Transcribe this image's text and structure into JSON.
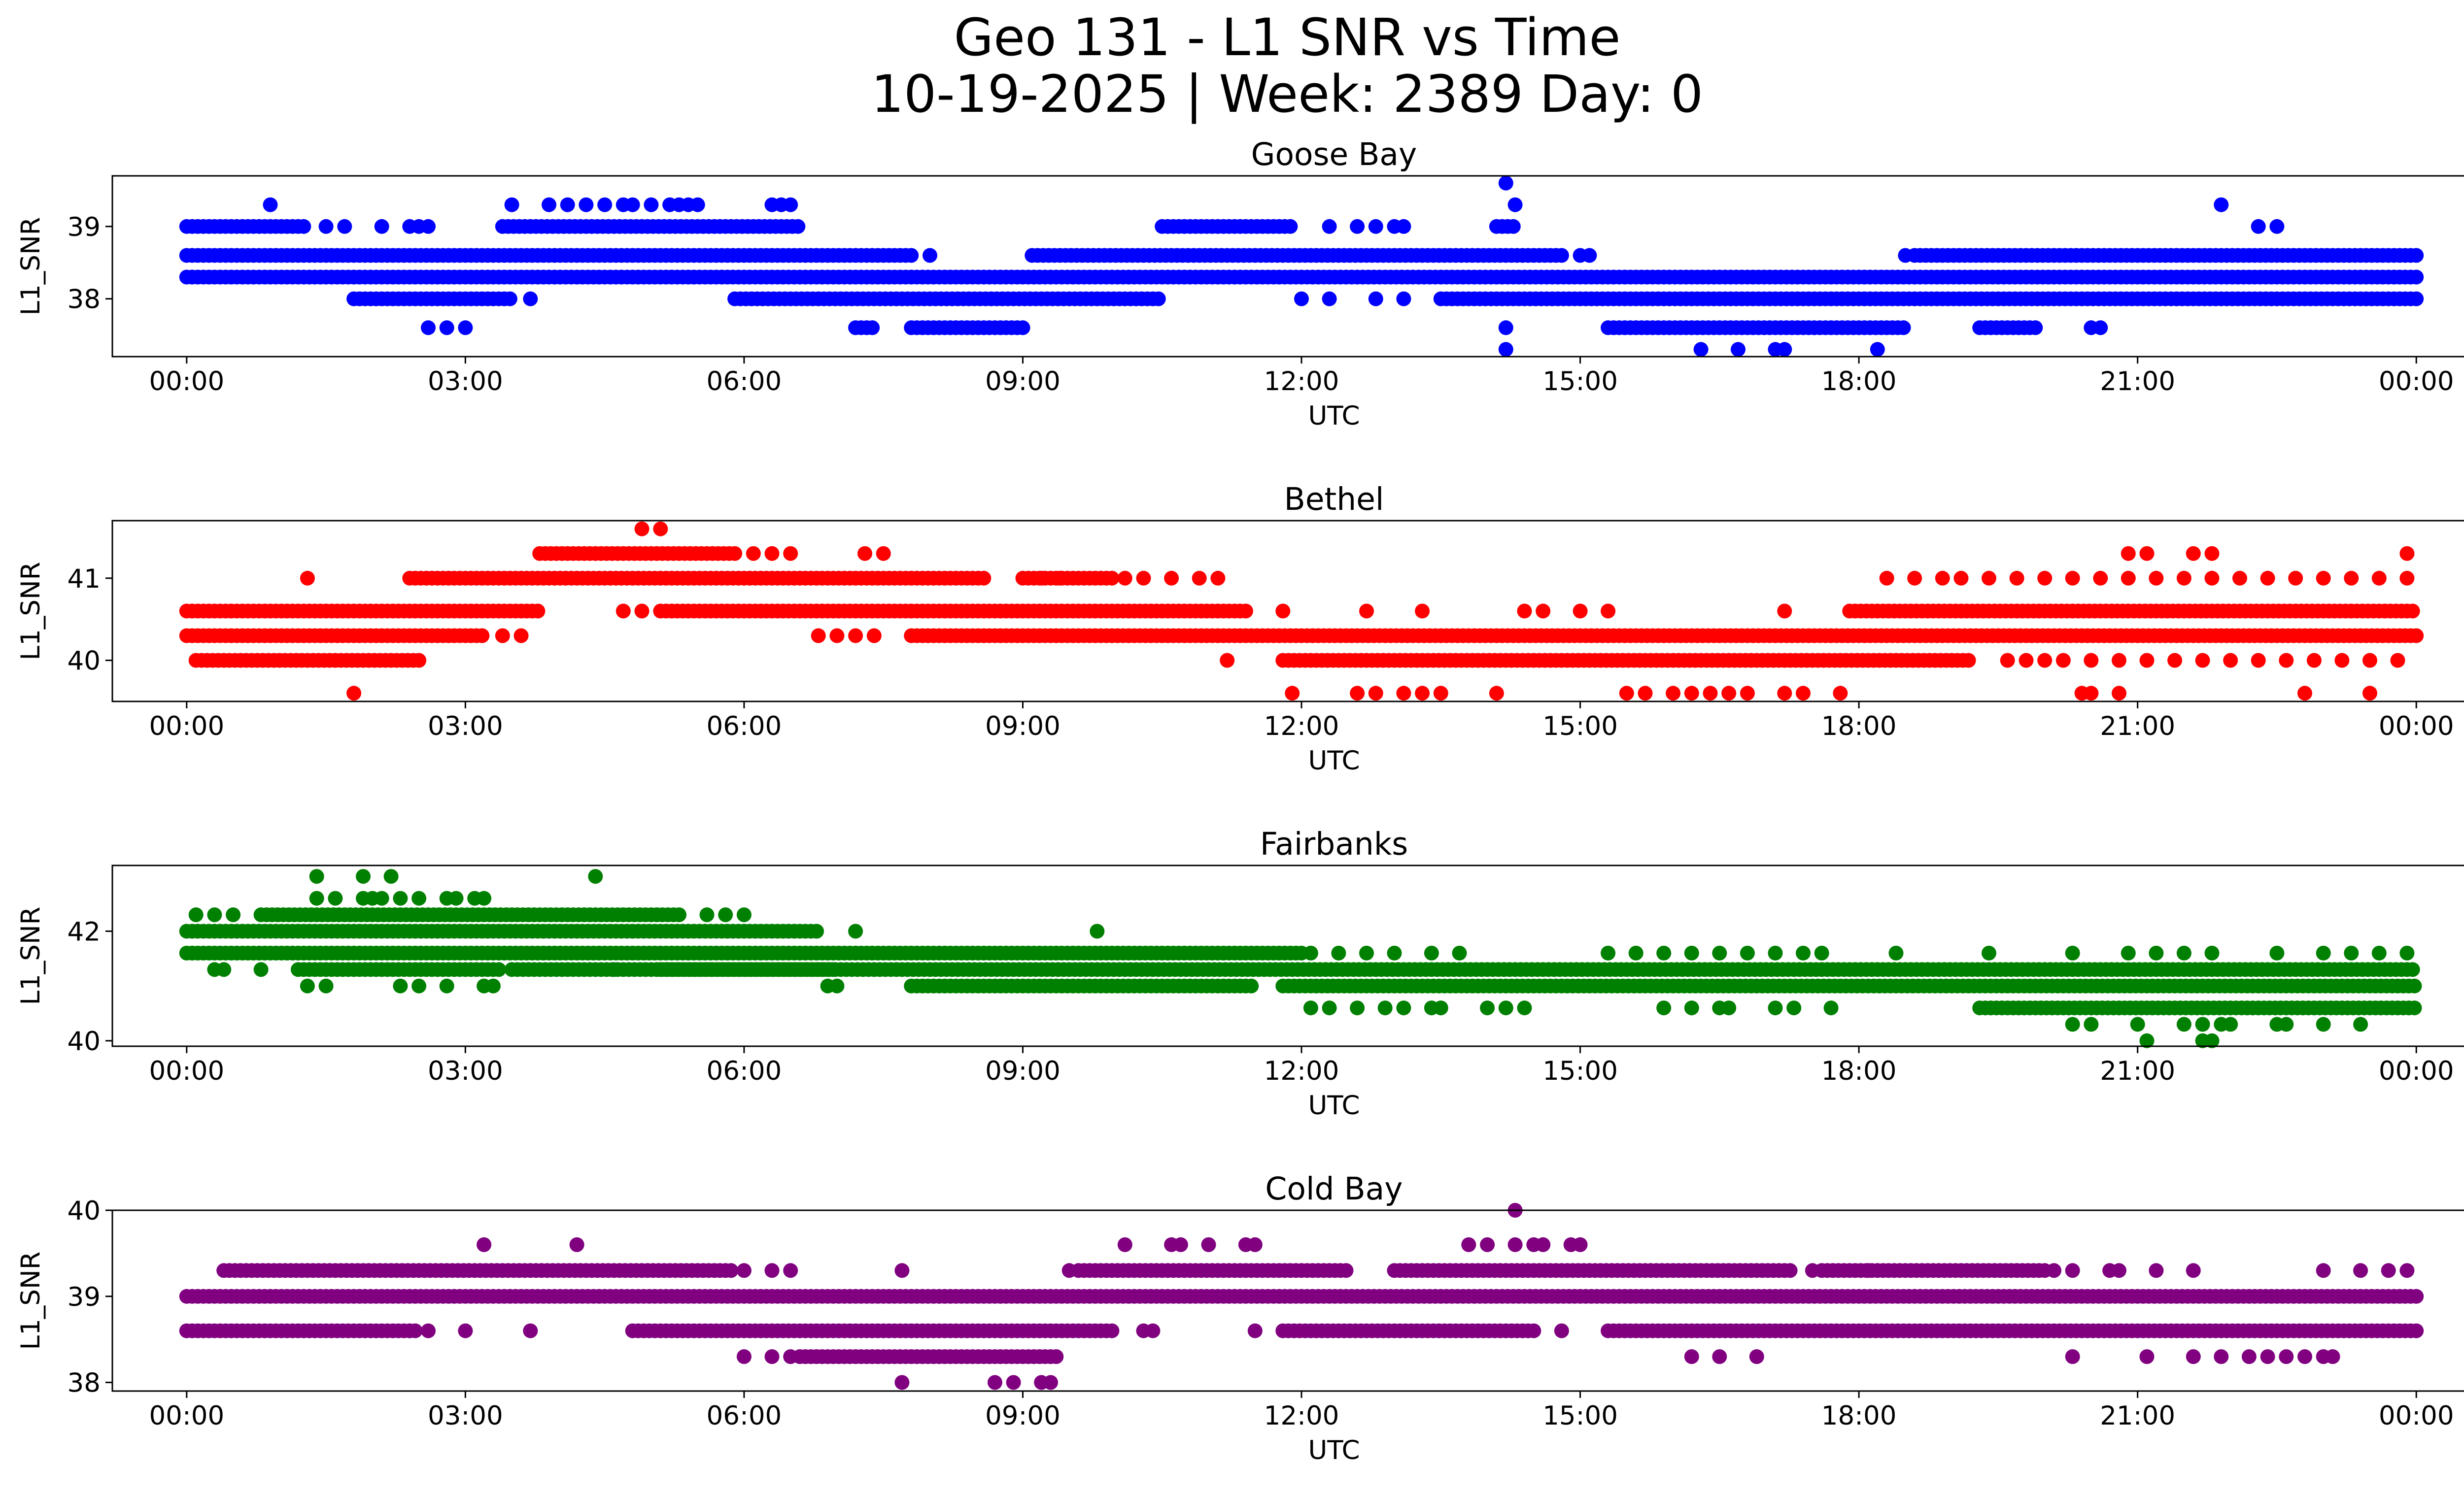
{
  "figure": {
    "title_line1": "Geo 131 - L1 SNR vs Time",
    "title_line2": "10-19-2025 | Week: 2389 Day: 0"
  },
  "chart_data": [
    {
      "type": "scatter",
      "title": "Goose Bay",
      "xlabel": "UTC",
      "ylabel": "L1_SNR",
      "color": "#0000ff",
      "xlim": [
        -0.8,
        25.5
      ],
      "ylim": [
        37.2,
        39.7
      ],
      "yticks": [
        38,
        39
      ],
      "xticks": [
        0,
        3,
        6,
        9,
        12,
        15,
        18,
        21,
        24
      ],
      "xticklabels": [
        "00:00",
        "03:00",
        "06:00",
        "09:00",
        "12:00",
        "15:00",
        "18:00",
        "21:00",
        "00:00"
      ],
      "levels": [
        37.3,
        37.6,
        38.0,
        38.3,
        38.6,
        39.0,
        39.3,
        39.6
      ],
      "bands": [
        {
          "y": 38.3,
          "segments": [
            [
              0,
              24
            ]
          ]
        },
        {
          "y": 38.6,
          "segments": [
            [
              0,
              7.8
            ],
            [
              9.1,
              14.8
            ],
            [
              18.6,
              24
            ]
          ]
        },
        {
          "y": 38.0,
          "segments": [
            [
              1.8,
              3.5
            ],
            [
              5.9,
              10.5
            ],
            [
              13.5,
              24
            ]
          ]
        },
        {
          "y": 39.0,
          "segments": [
            [
              0,
              1.3
            ],
            [
              3.4,
              6.6
            ],
            [
              10.5,
              11.9
            ],
            [
              14.1,
              14.3
            ]
          ]
        },
        {
          "y": 37.6,
          "segments": [
            [
              7.2,
              7.4
            ],
            [
              7.8,
              9.0
            ],
            [
              15.3,
              18.5
            ],
            [
              19.3,
              19.9
            ]
          ]
        }
      ],
      "scatter": [
        {
          "y": 37.6,
          "x": [
            2.6,
            2.8,
            3.0,
            14.2,
            20.5,
            20.6
          ]
        },
        {
          "y": 37.3,
          "x": [
            14.2,
            16.3,
            16.7,
            17.1,
            17.2,
            18.2
          ]
        },
        {
          "y": 38.0,
          "x": [
            3.7,
            12.0,
            12.3,
            12.8,
            13.1
          ]
        },
        {
          "y": 38.6,
          "x": [
            8.0,
            15.0,
            15.1,
            18.5
          ]
        },
        {
          "y": 39.0,
          "x": [
            1.5,
            1.7,
            2.1,
            2.4,
            2.5,
            2.6,
            12.3,
            12.6,
            12.8,
            13.0,
            13.1,
            22.3,
            22.5
          ]
        },
        {
          "y": 39.3,
          "x": [
            0.9,
            3.5,
            3.9,
            4.1,
            4.3,
            4.5,
            4.7,
            4.8,
            5.0,
            5.2,
            5.3,
            5.4,
            5.5,
            6.3,
            6.4,
            6.5,
            14.3,
            21.9
          ]
        },
        {
          "y": 39.6,
          "x": [
            14.2
          ]
        }
      ]
    },
    {
      "type": "scatter",
      "title": "Bethel",
      "xlabel": "UTC",
      "ylabel": "L1_SNR",
      "color": "#ff0000",
      "xlim": [
        -0.8,
        25.5
      ],
      "ylim": [
        39.5,
        41.7
      ],
      "yticks": [
        40,
        41
      ],
      "xticks": [
        0,
        3,
        6,
        9,
        12,
        15,
        18,
        21,
        24
      ],
      "xticklabels": [
        "00:00",
        "03:00",
        "06:00",
        "09:00",
        "12:00",
        "15:00",
        "18:00",
        "21:00",
        "00:00"
      ],
      "levels": [
        39.6,
        40.0,
        40.3,
        40.6,
        41.0,
        41.3,
        41.6
      ],
      "bands": [
        {
          "y": 40.3,
          "segments": [
            [
              0,
              3.2
            ],
            [
              7.8,
              24
            ]
          ]
        },
        {
          "y": 40.6,
          "segments": [
            [
              0,
              3.8
            ],
            [
              5.1,
              11.4
            ],
            [
              17.9,
              24
            ]
          ]
        },
        {
          "y": 40.0,
          "segments": [
            [
              0.1,
              2.5
            ],
            [
              11.8,
              19.2
            ]
          ]
        },
        {
          "y": 41.0,
          "segments": [
            [
              2.4,
              8.6
            ],
            [
              9.0,
              10.0
            ]
          ]
        },
        {
          "y": 41.3,
          "segments": [
            [
              3.8,
              5.9
            ]
          ]
        }
      ],
      "scatter": [
        {
          "y": 39.6,
          "x": [
            1.8,
            11.9,
            12.6,
            12.8,
            13.1,
            13.3,
            13.5,
            14.1,
            15.5,
            15.7,
            16.0,
            16.2,
            16.4,
            16.6,
            16.8,
            17.2,
            17.4,
            17.8,
            20.4,
            20.5,
            20.8,
            22.8,
            23.5
          ]
        },
        {
          "y": 40.0,
          "x": [
            11.2,
            19.6,
            19.8,
            20.0,
            20.2,
            20.5,
            20.8,
            21.1,
            21.4,
            21.7,
            22.0,
            22.3,
            22.6,
            22.9,
            23.2,
            23.5,
            23.8
          ]
        },
        {
          "y": 40.3,
          "x": [
            3.4,
            3.6,
            6.8,
            7.0,
            7.2,
            7.4
          ]
        },
        {
          "y": 40.6,
          "x": [
            4.7,
            4.9,
            11.8,
            12.7,
            13.3,
            14.4,
            14.6,
            15.0,
            15.3,
            17.2
          ]
        },
        {
          "y": 41.0,
          "x": [
            1.3,
            9.2,
            9.4,
            10.1,
            10.3,
            10.6,
            10.9,
            11.1,
            18.3,
            18.6,
            18.9,
            19.1,
            19.4,
            19.7,
            20.0,
            20.3,
            20.6,
            20.9,
            21.2,
            21.5,
            21.8,
            22.1,
            22.4,
            22.7,
            23.0,
            23.3,
            23.6,
            23.9
          ]
        },
        {
          "y": 41.3,
          "x": [
            6.1,
            6.3,
            6.5,
            7.3,
            7.5,
            20.9,
            21.1,
            21.6,
            21.8,
            23.9
          ]
        },
        {
          "y": 41.6,
          "x": [
            4.9,
            5.1
          ]
        }
      ]
    },
    {
      "type": "scatter",
      "title": "Fairbanks",
      "xlabel": "UTC",
      "ylabel": "L1_SNR",
      "color": "#008000",
      "xlim": [
        -0.8,
        25.5
      ],
      "ylim": [
        39.9,
        43.2
      ],
      "yticks": [
        40,
        42
      ],
      "xticks": [
        0,
        3,
        6,
        9,
        12,
        15,
        18,
        21,
        24
      ],
      "xticklabels": [
        "00:00",
        "03:00",
        "06:00",
        "09:00",
        "12:00",
        "15:00",
        "18:00",
        "21:00",
        "00:00"
      ],
      "levels": [
        40.0,
        40.3,
        40.6,
        41.0,
        41.3,
        41.6,
        42.0,
        42.3,
        42.6,
        43.0
      ],
      "bands": [
        {
          "y": 41.3,
          "segments": [
            [
              3.5,
              24
            ]
          ]
        },
        {
          "y": 41.6,
          "segments": [
            [
              0,
              12.0
            ]
          ]
        },
        {
          "y": 42.0,
          "segments": [
            [
              0,
              6.8
            ]
          ]
        },
        {
          "y": 41.0,
          "segments": [
            [
              11.8,
              24
            ]
          ]
        },
        {
          "y": 42.3,
          "segments": [
            [
              0.8,
              5.3
            ]
          ]
        },
        {
          "y": 41.3,
          "segments": [
            [
              1.2,
              3.4
            ],
            [
              5.1,
              7.0
            ]
          ]
        },
        {
          "y": 41.0,
          "segments": [
            [
              7.8,
              11.5
            ]
          ]
        },
        {
          "y": 40.6,
          "segments": [
            [
              19.3,
              24
            ]
          ]
        }
      ],
      "scatter": [
        {
          "y": 40.0,
          "x": [
            21.1,
            21.7,
            21.8
          ]
        },
        {
          "y": 40.3,
          "x": [
            20.3,
            20.5,
            21.0,
            21.5,
            21.7,
            21.9,
            22.0,
            22.5,
            22.6,
            23.0,
            23.4
          ]
        },
        {
          "y": 40.6,
          "x": [
            12.1,
            12.3,
            12.6,
            12.9,
            13.1,
            13.4,
            13.5,
            14.0,
            14.2,
            14.4,
            15.9,
            16.2,
            16.5,
            16.6,
            17.1,
            17.3,
            17.7
          ]
        },
        {
          "y": 41.0,
          "x": [
            1.3,
            1.5,
            2.3,
            2.5,
            2.8,
            3.2,
            3.3,
            6.9,
            7.0
          ]
        },
        {
          "y": 41.3,
          "x": [
            0.3,
            0.4,
            0.8,
            4.6
          ]
        },
        {
          "y": 41.6,
          "x": [
            12.1,
            12.4,
            12.7,
            13.0,
            13.4,
            13.7,
            15.3,
            15.6,
            15.9,
            16.2,
            16.5,
            16.8,
            17.1,
            17.4,
            17.6,
            18.4,
            19.4,
            20.3,
            20.9,
            21.2,
            21.5,
            21.8,
            22.5,
            23.0,
            23.3,
            23.6,
            23.9
          ]
        },
        {
          "y": 42.0,
          "x": [
            7.2,
            9.8
          ]
        },
        {
          "y": 42.3,
          "x": [
            0.1,
            0.3,
            0.5,
            5.6,
            5.8,
            6.0
          ]
        },
        {
          "y": 42.6,
          "x": [
            1.4,
            1.6,
            1.9,
            2.0,
            2.1,
            2.3,
            2.5,
            2.8,
            2.9,
            3.1,
            3.2
          ]
        },
        {
          "y": 43.0,
          "x": [
            1.4,
            1.9,
            2.2,
            4.4
          ]
        }
      ]
    },
    {
      "type": "scatter",
      "title": "Cold Bay",
      "xlabel": "UTC",
      "ylabel": "L1_SNR",
      "color": "#800080",
      "xlim": [
        -0.8,
        25.5
      ],
      "ylim": [
        37.9,
        40.0
      ],
      "yticks": [
        38,
        39,
        40
      ],
      "xticks": [
        0,
        3,
        6,
        9,
        12,
        15,
        18,
        21,
        24
      ],
      "xticklabels": [
        "00:00",
        "03:00",
        "06:00",
        "09:00",
        "12:00",
        "15:00",
        "18:00",
        "21:00",
        "00:00"
      ],
      "levels": [
        38.0,
        38.3,
        38.6,
        39.0,
        39.3,
        39.6,
        40.0
      ],
      "bands": [
        {
          "y": 39.0,
          "segments": [
            [
              0,
              24
            ]
          ]
        },
        {
          "y": 38.6,
          "segments": [
            [
              0,
              2.5
            ],
            [
              4.8,
              10.0
            ],
            [
              11.8,
              14.5
            ],
            [
              15.3,
              24
            ]
          ]
        },
        {
          "y": 39.3,
          "segments": [
            [
              0.4,
              5.9
            ],
            [
              9.6,
              12.5
            ],
            [
              13.0,
              17.3
            ],
            [
              17.6,
              20.0
            ]
          ]
        },
        {
          "y": 38.3,
          "segments": [
            [
              6.6,
              9.4
            ]
          ]
        }
      ],
      "scatter": [
        {
          "y": 38.0,
          "x": [
            7.7,
            8.7,
            8.9,
            9.2,
            9.3
          ]
        },
        {
          "y": 38.3,
          "x": [
            6.0,
            6.3,
            6.5,
            16.2,
            16.5,
            16.9,
            20.3,
            21.1,
            21.6,
            21.9,
            22.2,
            22.4,
            22.6,
            22.8,
            23.0,
            23.1
          ]
        },
        {
          "y": 38.6,
          "x": [
            2.4,
            2.6,
            3.0,
            3.7,
            10.3,
            10.4,
            11.5,
            14.8
          ]
        },
        {
          "y": 39.3,
          "x": [
            6.0,
            6.3,
            6.5,
            7.7,
            9.5,
            17.5,
            18.1,
            20.1,
            20.3,
            20.7,
            20.8,
            21.2,
            21.6,
            23.0,
            23.4,
            23.7,
            23.9
          ]
        },
        {
          "y": 39.6,
          "x": [
            3.2,
            4.2,
            10.1,
            10.6,
            10.7,
            11.0,
            11.4,
            11.5,
            13.8,
            14.0,
            14.3,
            14.5,
            14.6,
            14.9,
            15.0
          ]
        },
        {
          "y": 40.0,
          "x": [
            14.3
          ]
        }
      ]
    }
  ]
}
